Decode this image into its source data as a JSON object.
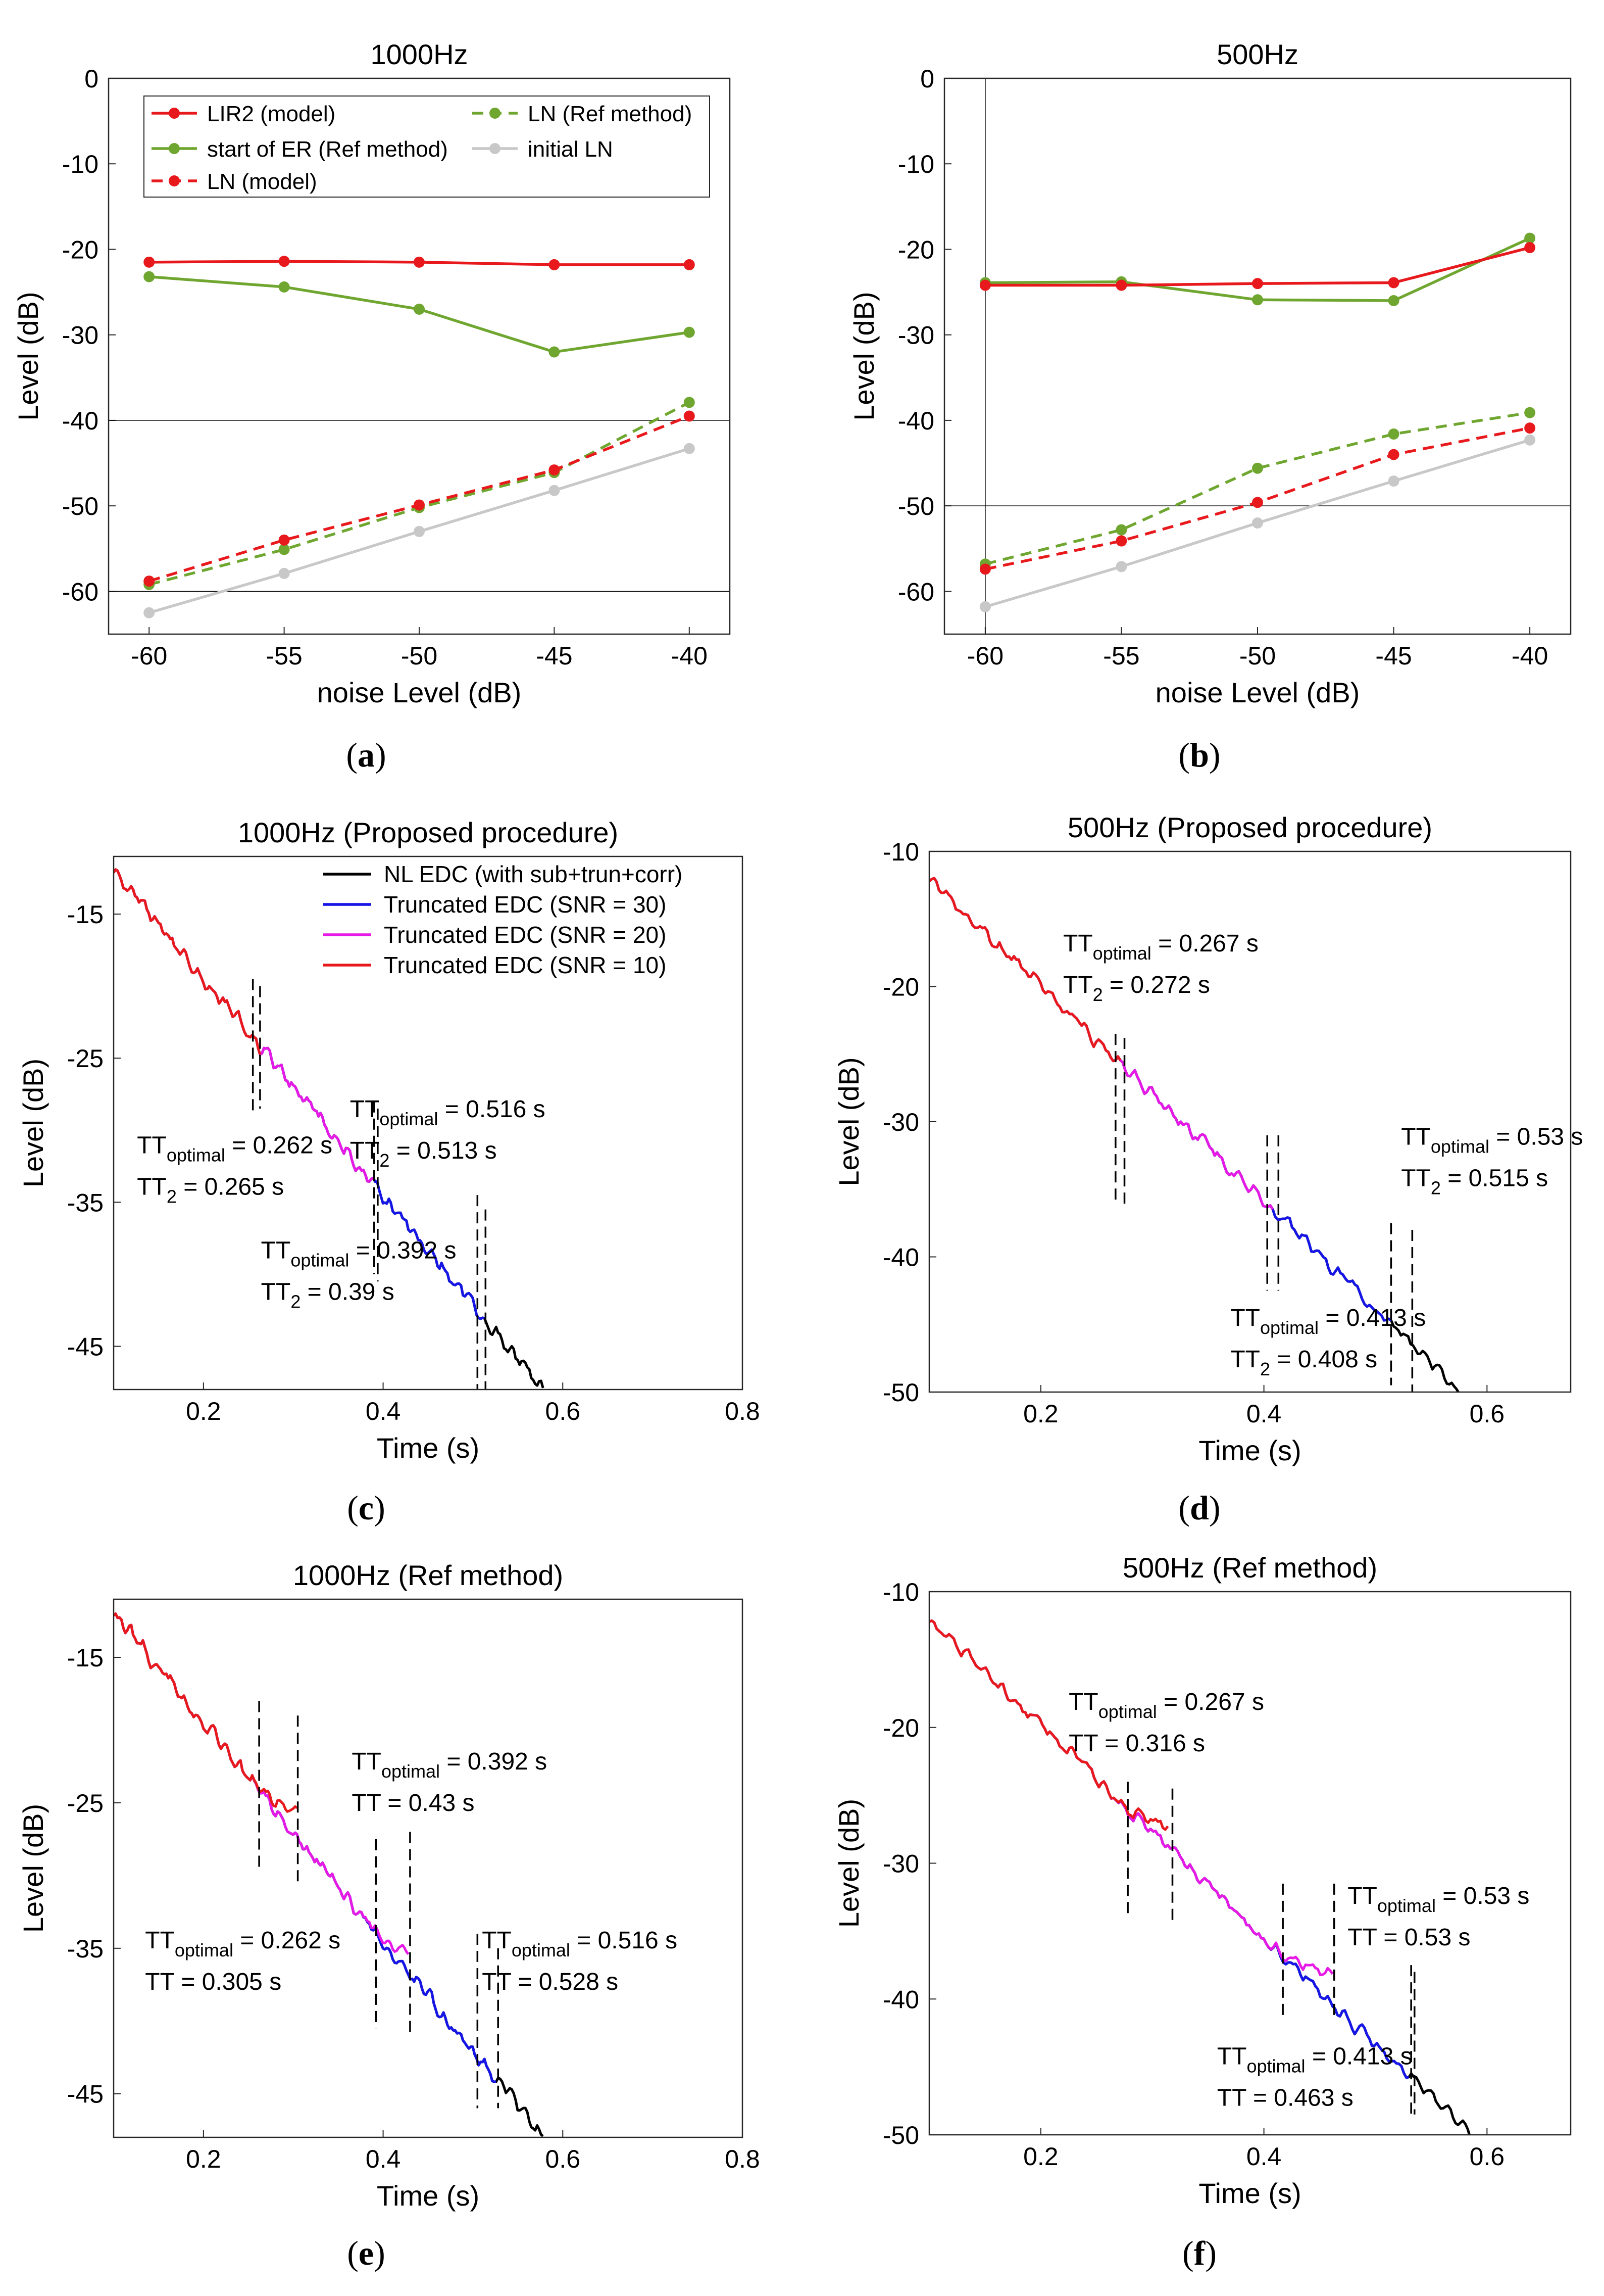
{
  "colors": {
    "red": "#e8191c",
    "green": "#6fa62f",
    "grey": "#c8c8c8",
    "black": "#000000",
    "blue": "#1515e6",
    "magenta": "#e619e6"
  },
  "panel_labels": [
    {
      "open": "(",
      "letter": "a",
      "close": ")"
    },
    {
      "open": "(",
      "letter": "b",
      "close": ")"
    },
    {
      "open": "(",
      "letter": "c",
      "close": ")"
    },
    {
      "open": "(",
      "letter": "d",
      "close": ")"
    },
    {
      "open": "(",
      "letter": "e",
      "close": ")"
    },
    {
      "open": "(",
      "letter": "f",
      "close": ")"
    }
  ],
  "chart_data": [
    {
      "type": "line",
      "title": "1000Hz",
      "xlabel": "noise Level (dB)",
      "ylabel": "Level (dB)",
      "xlim": [
        -61.5,
        -38.5
      ],
      "ylim": [
        -65,
        0
      ],
      "xticks": [
        -60,
        -55,
        -50,
        -45,
        -40
      ],
      "xtick_labels": [
        "-60",
        "-55",
        "-50",
        "-45",
        "-40"
      ],
      "yticks": [
        0,
        -10,
        -20,
        -30,
        -40,
        -50,
        -60
      ],
      "ytick_labels": [
        "0",
        "-10",
        "-20",
        "-30",
        "-40",
        "-50",
        "-60"
      ],
      "hlines": [
        -40,
        -60
      ],
      "vlines": [],
      "legend": [
        "LIR2 (model)",
        "LN (Ref method)",
        "start of ER (Ref method)",
        "initial LN",
        "LN (model)"
      ],
      "series": [
        {
          "name": "LIR2 (model)",
          "color": "red",
          "dash": false,
          "x": [
            -60,
            -55,
            -50,
            -45,
            -40
          ],
          "y": [
            -21.5,
            -21.4,
            -21.5,
            -21.8,
            -21.8
          ]
        },
        {
          "name": "start of ER (Ref method)",
          "color": "green",
          "dash": false,
          "x": [
            -60,
            -55,
            -50,
            -45,
            -40
          ],
          "y": [
            -23.2,
            -24.4,
            -27.0,
            -32.0,
            -29.7
          ]
        },
        {
          "name": "LN (Ref method)",
          "color": "green",
          "dash": true,
          "x": [
            -60,
            -55,
            -50,
            -45,
            -40
          ],
          "y": [
            -59.2,
            -55.1,
            -50.2,
            -46.1,
            -37.9
          ]
        },
        {
          "name": "initial LN",
          "color": "grey",
          "dash": false,
          "x": [
            -60,
            -55,
            -50,
            -45,
            -40
          ],
          "y": [
            -62.5,
            -57.9,
            -53.0,
            -48.2,
            -43.3
          ]
        },
        {
          "name": "LN (model)",
          "color": "red",
          "dash": true,
          "x": [
            -60,
            -55,
            -50,
            -45,
            -40
          ],
          "y": [
            -58.8,
            -54.0,
            -49.9,
            -45.8,
            -39.5
          ]
        }
      ]
    },
    {
      "type": "line",
      "title": "500Hz",
      "xlabel": "noise Level (dB)",
      "ylabel": "Level (dB)",
      "xlim": [
        -61.5,
        -38.5
      ],
      "ylim": [
        -65,
        0
      ],
      "xticks": [
        -60,
        -55,
        -50,
        -45,
        -40
      ],
      "xtick_labels": [
        "-60",
        "-55",
        "-50",
        "-45",
        "-40"
      ],
      "yticks": [
        0,
        -10,
        -20,
        -30,
        -40,
        -50,
        -60
      ],
      "ytick_labels": [
        "0",
        "-10",
        "-20",
        "-30",
        "-40",
        "-50",
        "-60"
      ],
      "hlines": [
        -50
      ],
      "vlines": [
        -60
      ],
      "legend": [],
      "series": [
        {
          "name": "LIR2 (model)",
          "color": "red",
          "dash": false,
          "x": [
            -60,
            -55,
            -50,
            -45,
            -40
          ],
          "y": [
            -24.2,
            -24.2,
            -24.0,
            -23.9,
            -19.8
          ]
        },
        {
          "name": "start of ER (Ref method)",
          "color": "green",
          "dash": false,
          "x": [
            -60,
            -55,
            -50,
            -45,
            -40
          ],
          "y": [
            -23.9,
            -23.8,
            -25.9,
            -26.0,
            -18.7
          ]
        },
        {
          "name": "LN (Ref method)",
          "color": "green",
          "dash": true,
          "x": [
            -60,
            -55,
            -50,
            -45,
            -40
          ],
          "y": [
            -56.8,
            -52.8,
            -45.6,
            -41.6,
            -39.1
          ]
        },
        {
          "name": "initial LN",
          "color": "grey",
          "dash": false,
          "x": [
            -60,
            -55,
            -50,
            -45,
            -40
          ],
          "y": [
            -61.8,
            -57.1,
            -52.0,
            -47.1,
            -42.3
          ]
        },
        {
          "name": "LN (model)",
          "color": "red",
          "dash": true,
          "x": [
            -60,
            -55,
            -50,
            -45,
            -40
          ],
          "y": [
            -57.4,
            -54.1,
            -49.6,
            -44.0,
            -40.9
          ]
        }
      ]
    },
    {
      "type": "line",
      "title": "1000Hz (Proposed procedure)",
      "xlabel": "Time (s)",
      "ylabel": "Level (dB)",
      "xlim": [
        0.1,
        0.8
      ],
      "ylim": [
        -48,
        -11
      ],
      "xticks": [
        0.2,
        0.4,
        0.6,
        0.8
      ],
      "xtick_labels": [
        "0.2",
        "0.4",
        "0.6",
        "0.8"
      ],
      "yticks": [
        -15,
        -25,
        -35,
        -45
      ],
      "ytick_labels": [
        "-15",
        "-25",
        "-35",
        "-45"
      ],
      "legend": [
        "NL EDC (with sub+trun+corr)",
        "Truncated EDC (SNR = 30)",
        "Truncated EDC (SNR = 20)",
        "Truncated EDC (SNR = 10)"
      ],
      "curve": {
        "x0": 0.1,
        "y0": -11.9,
        "x1": 0.578,
        "y1": -48.0
      },
      "series": [
        {
          "name": "NL EDC (with sub+trun+corr)",
          "color": "black",
          "x_end": 0.578
        },
        {
          "name": "Truncated EDC (SNR = 30)",
          "color": "blue",
          "x_end": 0.513
        },
        {
          "name": "Truncated EDC (SNR = 20)",
          "color": "magenta",
          "x_end": 0.39
        },
        {
          "name": "Truncated EDC (SNR = 10)",
          "color": "red",
          "x_end": 0.265
        }
      ],
      "vlines": [
        {
          "x": 0.255,
          "y_top": -19.5,
          "y_bottom": -29.0
        },
        {
          "x": 0.263,
          "y_top": -20.0,
          "y_bottom": -28.5
        },
        {
          "x": 0.39,
          "y_top": -28.0,
          "y_bottom": -40.0
        },
        {
          "x": 0.394,
          "y_top": -28.5,
          "y_bottom": -40.5
        },
        {
          "x": 0.505,
          "y_top": -34.5,
          "y_bottom": -48.0
        },
        {
          "x": 0.514,
          "y_top": -35.5,
          "y_bottom": -48.0
        }
      ],
      "annotations": [
        {
          "tt": "TT",
          "sub": "optimal",
          "value": " = 0.262 s",
          "tt2": "TT",
          "sub2": "2",
          "value2": " = 0.265 s",
          "x": 0.126,
          "y": -31.6
        },
        {
          "tt": "TT",
          "sub": "optimal",
          "value": " = 0.516 s",
          "tt2": "TT",
          "sub2": "2",
          "value2": " = 0.513 s",
          "x": 0.363,
          "y": -29.1
        },
        {
          "tt": "TT",
          "sub": "optimal",
          "value": " = 0.392 s",
          "tt2": "TT",
          "sub2": "2",
          "value2": " = 0.39 s",
          "x": 0.264,
          "y": -38.9
        }
      ]
    },
    {
      "type": "line",
      "title": "500Hz (Proposed procedure)",
      "xlabel": "Time (s)",
      "ylabel": "Level (dB)",
      "xlim": [
        0.1,
        0.675
      ],
      "ylim": [
        -50,
        -10
      ],
      "xticks": [
        0.2,
        0.4,
        0.6
      ],
      "xtick_labels": [
        "0.2",
        "0.4",
        "0.6"
      ],
      "yticks": [
        -10,
        -20,
        -30,
        -40,
        -50
      ],
      "ytick_labels": [
        "-10",
        "-20",
        "-30",
        "-40",
        "-50"
      ],
      "legend": [],
      "curve": {
        "x0": 0.1,
        "y0": -12.0,
        "x1": 0.577,
        "y1": -50.0
      },
      "series": [
        {
          "name": "NL EDC (with sub+trun+corr)",
          "color": "black",
          "x_end": 0.577
        },
        {
          "name": "Truncated EDC (SNR = 30)",
          "color": "blue",
          "x_end": 0.515
        },
        {
          "name": "Truncated EDC (SNR = 20)",
          "color": "magenta",
          "x_end": 0.408
        },
        {
          "name": "Truncated EDC (SNR = 10)",
          "color": "red",
          "x_end": 0.272
        }
      ],
      "vlines": [
        {
          "x": 0.267,
          "y_top": -23.5,
          "y_bottom": -35.8
        },
        {
          "x": 0.275,
          "y_top": -23.8,
          "y_bottom": -36.2
        },
        {
          "x": 0.403,
          "y_top": -31.0,
          "y_bottom": -42.5
        },
        {
          "x": 0.413,
          "y_top": -31.0,
          "y_bottom": -42.5
        },
        {
          "x": 0.514,
          "y_top": -37.5,
          "y_bottom": -49.5
        },
        {
          "x": 0.533,
          "y_top": -38.0,
          "y_bottom": -50.0
        }
      ],
      "annotations": [
        {
          "tt": "TT",
          "sub": "optimal",
          "value": " = 0.267 s",
          "tt2": "TT",
          "sub2": "2",
          "value2": " = 0.272 s",
          "x": 0.22,
          "y": -17.4
        },
        {
          "tt": "TT",
          "sub": "optimal",
          "value": " = 0.53 s",
          "tt2": "TT",
          "sub2": "2",
          "value2": " = 0.515 s",
          "x": 0.523,
          "y": -31.7
        },
        {
          "tt": "TT",
          "sub": "optimal",
          "value": " = 0.413 s",
          "tt2": "TT",
          "sub2": "2",
          "value2": " = 0.408 s",
          "x": 0.37,
          "y": -45.1
        }
      ]
    },
    {
      "type": "line",
      "title": "1000Hz (Ref method)",
      "xlabel": "Time (s)",
      "ylabel": "Level (dB)",
      "xlim": [
        0.1,
        0.8
      ],
      "ylim": [
        -48,
        -11
      ],
      "xticks": [
        0.2,
        0.4,
        0.6,
        0.8
      ],
      "xtick_labels": [
        "0.2",
        "0.4",
        "0.6",
        "0.8"
      ],
      "yticks": [
        -15,
        -25,
        -35,
        -45
      ],
      "ytick_labels": [
        "-15",
        "-25",
        "-35",
        "-45"
      ],
      "legend": [],
      "curve": {
        "x0": 0.1,
        "y0": -11.9,
        "x1": 0.578,
        "y1": -48.0
      },
      "series": [
        {
          "name": "NL EDC",
          "color": "black",
          "x_end": 0.578
        },
        {
          "name": "Truncated EDC (SNR = 30)",
          "color": "blue",
          "x_end": 0.528
        },
        {
          "name": "Truncated EDC (SNR = 20)",
          "color": "magenta",
          "x_end": 0.43,
          "dev": [
            [
              0.37,
              0.0
            ],
            [
              0.43,
              1.5
            ]
          ]
        },
        {
          "name": "Truncated EDC (SNR = 10)",
          "color": "red",
          "x_end": 0.305,
          "dev": [
            [
              0.25,
              0.0
            ],
            [
              0.3,
              1.8
            ]
          ]
        }
      ],
      "vlines": [
        {
          "x": 0.262,
          "y_top": -18.0,
          "y_bottom": -29.5
        },
        {
          "x": 0.305,
          "y_top": -19.0,
          "y_bottom": -30.5
        },
        {
          "x": 0.392,
          "y_top": -27.5,
          "y_bottom": -40.5
        },
        {
          "x": 0.43,
          "y_top": -27.0,
          "y_bottom": -41.0
        },
        {
          "x": 0.505,
          "y_top": -34.0,
          "y_bottom": -46.0
        },
        {
          "x": 0.528,
          "y_top": -35.0,
          "y_bottom": -46.0
        }
      ],
      "annotations": [
        {
          "tt": "TT",
          "sub": "optimal",
          "value": " = 0.392 s",
          "tt2": "TT",
          "sub2": "",
          "value2": " = 0.43 s",
          "x": 0.365,
          "y": -22.7
        },
        {
          "tt": "TT",
          "sub": "optimal",
          "value": " = 0.262 s",
          "tt2": "TT",
          "sub2": "",
          "value2": " = 0.305 s",
          "x": 0.135,
          "y": -35.0
        },
        {
          "tt": "TT",
          "sub": "optimal",
          "value": " = 0.516 s",
          "tt2": "TT",
          "sub2": "",
          "value2": " = 0.528 s",
          "x": 0.51,
          "y": -35.0
        }
      ]
    },
    {
      "type": "line",
      "title": "500Hz (Ref method)",
      "xlabel": "Time (s)",
      "ylabel": "Level (dB)",
      "xlim": [
        0.1,
        0.675
      ],
      "ylim": [
        -50,
        -10
      ],
      "xticks": [
        0.2,
        0.4,
        0.6
      ],
      "xtick_labels": [
        "0.2",
        "0.4",
        "0.6"
      ],
      "yticks": [
        -10,
        -20,
        -30,
        -40,
        -50
      ],
      "ytick_labels": [
        "-10",
        "-20",
        "-30",
        "-40",
        "-50"
      ],
      "legend": [],
      "curve": {
        "x0": 0.1,
        "y0": -12.0,
        "x1": 0.585,
        "y1": -50.0
      },
      "series": [
        {
          "name": "NL EDC",
          "color": "black",
          "x_end": 0.585
        },
        {
          "name": "Truncated EDC (SNR = 30)",
          "color": "blue",
          "x_end": 0.53
        },
        {
          "name": "Truncated EDC (SNR = 20)",
          "color": "magenta",
          "x_end": 0.463,
          "dev": [
            [
              0.4,
              0.0
            ],
            [
              0.463,
              2.5
            ]
          ]
        },
        {
          "name": "Truncated EDC (SNR = 10)",
          "color": "red",
          "x_end": 0.316,
          "dev": [
            [
              0.26,
              0.0
            ],
            [
              0.316,
              1.5
            ]
          ]
        }
      ],
      "vlines": [
        {
          "x": 0.278,
          "y_top": -24.0,
          "y_bottom": -34.0
        },
        {
          "x": 0.318,
          "y_top": -24.5,
          "y_bottom": -34.5
        },
        {
          "x": 0.417,
          "y_top": -31.5,
          "y_bottom": -41.5
        },
        {
          "x": 0.463,
          "y_top": -31.5,
          "y_bottom": -41.5
        },
        {
          "x": 0.532,
          "y_top": -37.5,
          "y_bottom": -48.5
        },
        {
          "x": 0.535,
          "y_top": -38.0,
          "y_bottom": -48.5
        }
      ],
      "annotations": [
        {
          "tt": "TT",
          "sub": "optimal",
          "value": " = 0.267 s",
          "tt2": "TT",
          "sub2": "",
          "value2": " = 0.316 s",
          "x": 0.225,
          "y": -18.7
        },
        {
          "tt": "TT",
          "sub": "optimal",
          "value": " = 0.53 s",
          "tt2": "TT",
          "sub2": "",
          "value2": " = 0.53 s",
          "x": 0.475,
          "y": -33.0
        },
        {
          "tt": "TT",
          "sub": "optimal",
          "value": " = 0.413 s",
          "tt2": "TT",
          "sub2": "",
          "value2": " = 0.463 s",
          "x": 0.358,
          "y": -44.8
        }
      ]
    }
  ]
}
